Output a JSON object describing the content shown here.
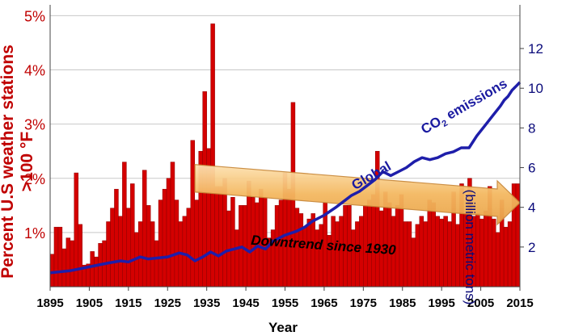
{
  "chart_data": {
    "type": "bar",
    "xlabel": "Year",
    "ylabel_left": "Percent U.S weather stations >100 °F",
    "ylabel_right": "(billion metric tons)",
    "y_left_ticks": [
      "1%",
      "2%",
      "3%",
      "4%",
      "5%"
    ],
    "y_left_range": [
      0,
      5.2
    ],
    "y_right_ticks": [
      "2",
      "4",
      "6",
      "8",
      "10",
      "12"
    ],
    "y_right_range": [
      0,
      14.2
    ],
    "x_ticks": [
      "1895",
      "1905",
      "1915",
      "1925",
      "1935",
      "1945",
      "1955",
      "1965",
      "1975",
      "1985",
      "1995",
      "2005",
      "2015"
    ],
    "grid": true,
    "colors": {
      "bars": "#d40000",
      "bar_edge": "#8b0000",
      "co2_line": "#1e1eaa",
      "arrow": "#f4b860",
      "left_axis": "#c00000",
      "right_axis": "#0a0a7a"
    },
    "series": [
      {
        "type": "bar",
        "axis": "left",
        "x_start": 1895,
        "values": [
          0.6,
          1.1,
          1.1,
          0.7,
          0.9,
          0.85,
          2.1,
          1.15,
          0.4,
          0.42,
          0.65,
          0.55,
          0.8,
          0.85,
          1.2,
          1.45,
          1.8,
          1.3,
          2.3,
          1.45,
          1.9,
          1.0,
          1.2,
          2.15,
          1.5,
          1.2,
          0.85,
          1.6,
          1.8,
          2.0,
          2.3,
          1.6,
          1.2,
          1.3,
          1.45,
          2.7,
          1.6,
          2.5,
          3.6,
          2.55,
          4.85,
          1.85,
          1.85,
          2.0,
          1.4,
          1.65,
          1.05,
          1.5,
          1.5,
          1.95,
          1.65,
          1.55,
          1.8,
          1.65,
          0.9,
          1.05,
          1.5,
          1.6,
          2.1,
          1.8,
          3.4,
          1.45,
          1.35,
          1.1,
          1.25,
          1.35,
          1.05,
          1.15,
          1.55,
          0.95,
          1.3,
          1.2,
          1.3,
          1.5,
          1.5,
          1.05,
          1.2,
          1.3,
          1.5,
          1.6,
          1.7,
          2.5,
          1.4,
          1.75,
          1.55,
          1.3,
          1.5,
          1.7,
          1.2,
          1.2,
          0.9,
          1.15,
          1.3,
          1.2,
          1.6,
          1.55,
          1.3,
          1.25,
          1.3,
          1.2,
          1.75,
          1.15,
          1.9,
          1.35,
          2.0,
          1.3,
          1.35,
          1.25,
          1.4,
          1.85,
          1.25,
          1.0,
          1.6,
          1.1,
          1.2,
          1.9,
          1.9
        ]
      },
      {
        "type": "line",
        "name": "Global CO2 emissions",
        "axis": "right",
        "points": [
          [
            1895,
            0.7
          ],
          [
            1900,
            0.8
          ],
          [
            1905,
            1.0
          ],
          [
            1910,
            1.2
          ],
          [
            1913,
            1.3
          ],
          [
            1915,
            1.25
          ],
          [
            1918,
            1.5
          ],
          [
            1920,
            1.4
          ],
          [
            1925,
            1.5
          ],
          [
            1928,
            1.7
          ],
          [
            1930,
            1.6
          ],
          [
            1932,
            1.3
          ],
          [
            1934,
            1.5
          ],
          [
            1936,
            1.75
          ],
          [
            1938,
            1.55
          ],
          [
            1940,
            1.8
          ],
          [
            1942,
            1.9
          ],
          [
            1944,
            2.0
          ],
          [
            1946,
            1.75
          ],
          [
            1948,
            2.05
          ],
          [
            1950,
            1.9
          ],
          [
            1952,
            2.3
          ],
          [
            1955,
            2.6
          ],
          [
            1958,
            2.8
          ],
          [
            1960,
            3.0
          ],
          [
            1962,
            3.3
          ],
          [
            1965,
            3.6
          ],
          [
            1968,
            4.0
          ],
          [
            1970,
            4.3
          ],
          [
            1972,
            4.6
          ],
          [
            1974,
            4.8
          ],
          [
            1976,
            5.1
          ],
          [
            1978,
            5.4
          ],
          [
            1980,
            5.8
          ],
          [
            1982,
            5.6
          ],
          [
            1984,
            5.8
          ],
          [
            1986,
            6.0
          ],
          [
            1988,
            6.3
          ],
          [
            1990,
            6.5
          ],
          [
            1992,
            6.4
          ],
          [
            1994,
            6.5
          ],
          [
            1996,
            6.7
          ],
          [
            1998,
            6.8
          ],
          [
            2000,
            7.0
          ],
          [
            2002,
            7.0
          ],
          [
            2004,
            7.6
          ],
          [
            2006,
            8.1
          ],
          [
            2008,
            8.6
          ],
          [
            2010,
            9.1
          ],
          [
            2011,
            9.4
          ],
          [
            2012,
            9.6
          ],
          [
            2013,
            9.9
          ],
          [
            2014,
            10.1
          ],
          [
            2015,
            10.3
          ]
        ]
      }
    ],
    "annotations": {
      "global": "Global",
      "co2_prefix": "CO",
      "co2_sub": "2",
      "co2_suffix": " emissions",
      "trend": "Downtrend since 1930"
    },
    "trend_arrow": {
      "from_year": 1932,
      "to_year": 2015,
      "from_left_pct": 2.0,
      "to_left_pct": 1.55
    }
  }
}
